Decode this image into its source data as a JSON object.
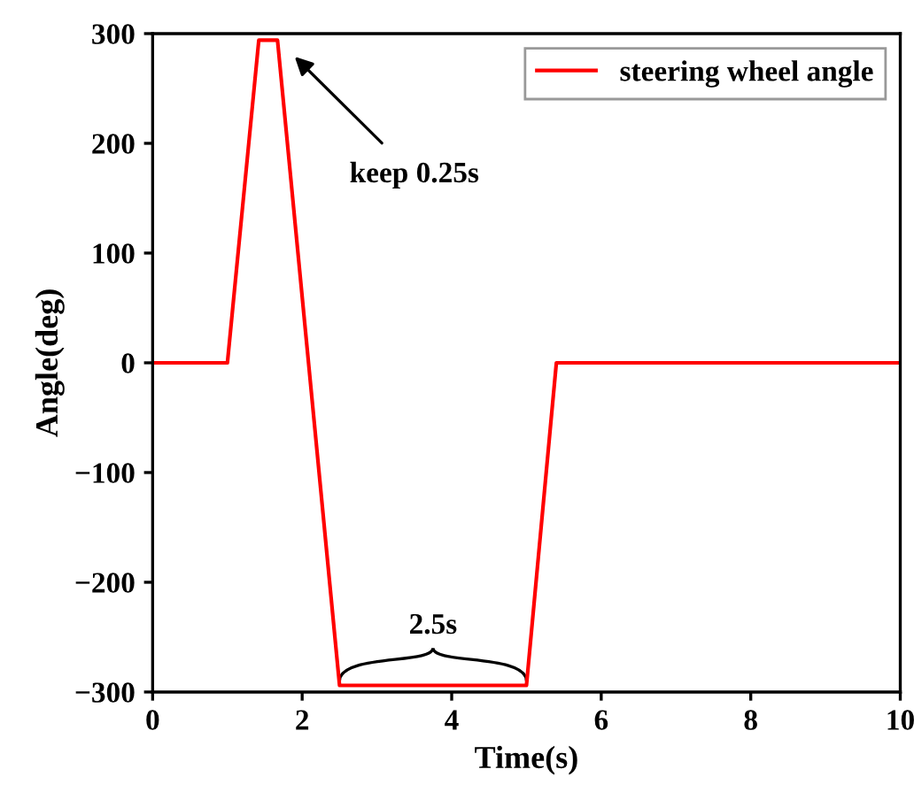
{
  "chart_data": {
    "type": "line",
    "xlabel": "Time(s)",
    "ylabel": "Angle(deg)",
    "x": [
      0,
      1,
      1.42,
      1.67,
      2.5,
      5.0,
      5.4,
      10
    ],
    "series": [
      {
        "name": "steering wheel angle",
        "color": "#ff0000",
        "values": [
          0,
          0,
          294,
          294,
          -294,
          -294,
          0,
          0
        ]
      }
    ],
    "xlim": [
      0,
      10
    ],
    "ylim": [
      -300,
      300
    ],
    "xticks": [
      0,
      2,
      4,
      6,
      8,
      10
    ],
    "yticks": [
      -300,
      -200,
      -100,
      0,
      100,
      200,
      300
    ],
    "grid": false,
    "legend": "top right",
    "marker": "none",
    "line_style": "solid",
    "annotations": [
      "keep 0.25s",
      "2.5s"
    ]
  }
}
